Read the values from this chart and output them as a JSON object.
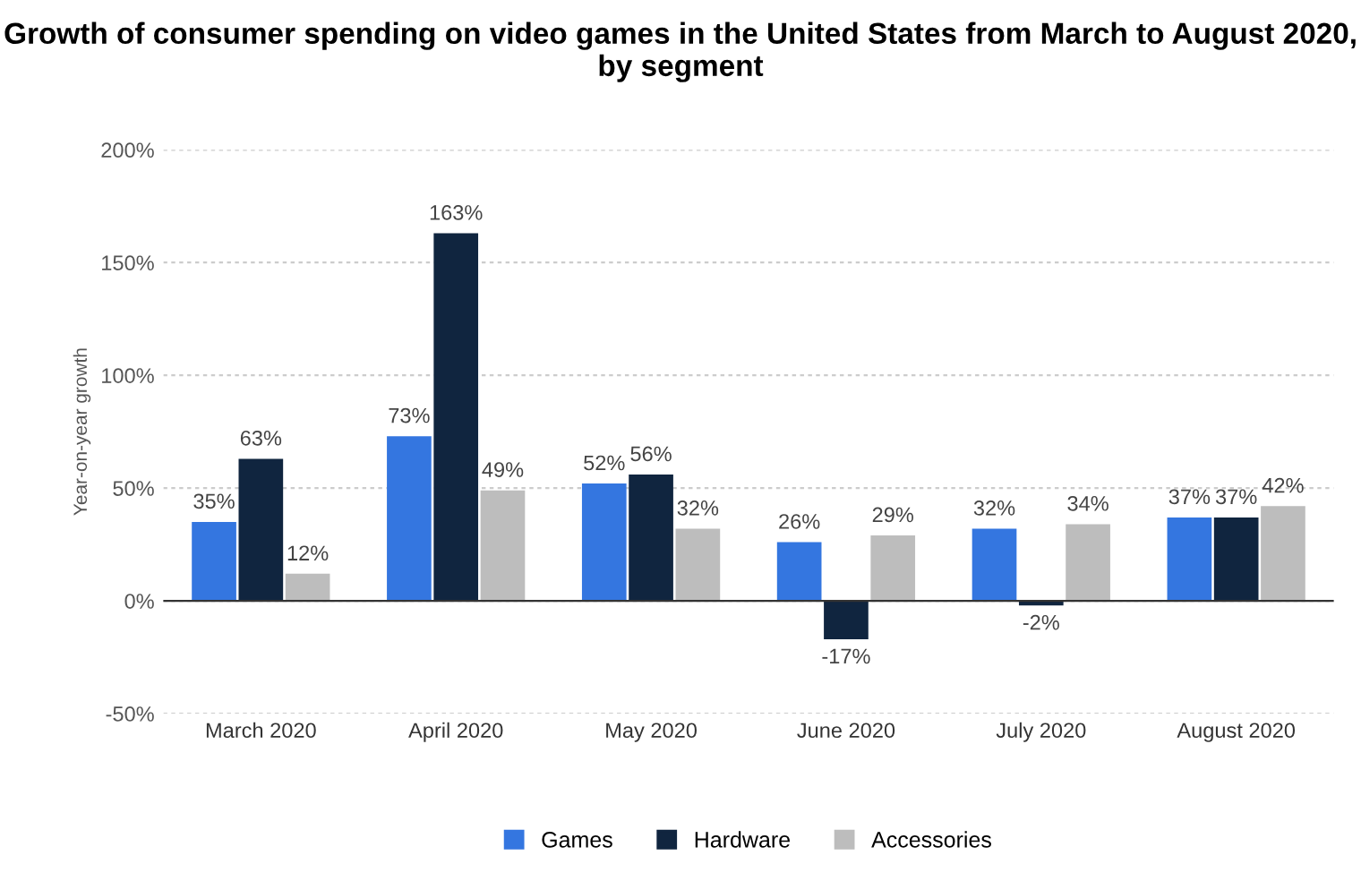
{
  "chart_data": {
    "type": "bar",
    "title": "Growth of consumer spending on video games in the United States from March to August 2020, by segment",
    "ylabel": "Year-on-year growth",
    "categories": [
      "March 2020",
      "April 2020",
      "May 2020",
      "June 2020",
      "July 2020",
      "August 2020"
    ],
    "series": [
      {
        "name": "Games",
        "color": "#3476e0",
        "values": [
          35,
          73,
          52,
          26,
          32,
          37
        ],
        "value_labels": [
          "35%",
          "73%",
          "52%",
          "26%",
          "32%",
          "37%"
        ]
      },
      {
        "name": "Hardware",
        "color": "#10253f",
        "values": [
          63,
          163,
          56,
          -17,
          -2,
          37
        ],
        "value_labels": [
          "63%",
          "163%",
          "56%",
          "-17%",
          "-2%",
          "37%"
        ]
      },
      {
        "name": "Accessories",
        "color": "#bdbdbd",
        "values": [
          12,
          49,
          32,
          29,
          34,
          42
        ],
        "value_labels": [
          "12%",
          "49%",
          "32%",
          "29%",
          "34%",
          "42%"
        ]
      }
    ],
    "ylim": [
      -50,
      200
    ],
    "yticks": [
      {
        "value": -50,
        "label": "-50%"
      },
      {
        "value": 0,
        "label": "0%"
      },
      {
        "value": 50,
        "label": "50%"
      },
      {
        "value": 100,
        "label": "100%"
      },
      {
        "value": 150,
        "label": "150%"
      },
      {
        "value": 200,
        "label": "200%"
      }
    ],
    "grid": "y",
    "legend": "bottom"
  }
}
